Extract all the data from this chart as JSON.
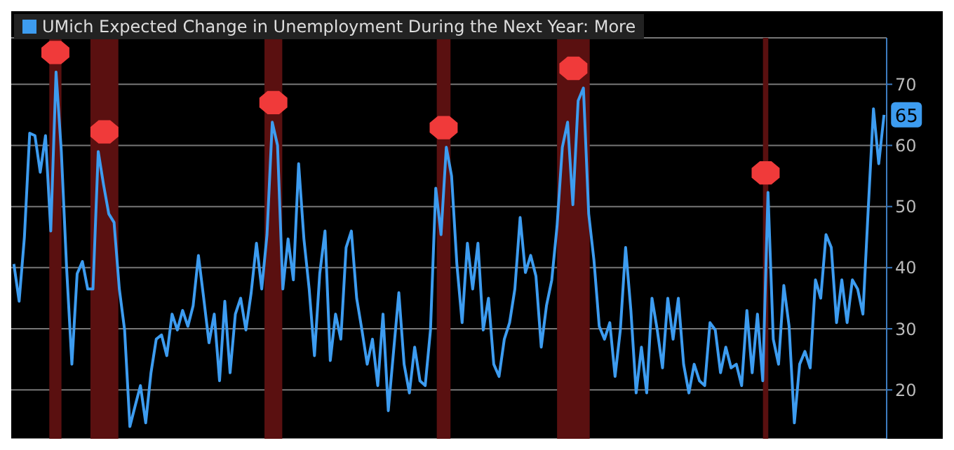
{
  "chart_data": {
    "type": "line",
    "categories": [
      null,
      null,
      null,
      null,
      null,
      null,
      null,
      null,
      null,
      null,
      null,
      null,
      null,
      null,
      null,
      null,
      null,
      null,
      null,
      null,
      null,
      null,
      null,
      null,
      null,
      null,
      null,
      null,
      null,
      null,
      null,
      null,
      null,
      null,
      null,
      null,
      null,
      null,
      null,
      null,
      null,
      null,
      null,
      null,
      null,
      null,
      null,
      null,
      null,
      null,
      null,
      null,
      null,
      null,
      null,
      null,
      null,
      null,
      null,
      null,
      null,
      null,
      null,
      null,
      null,
      null,
      null,
      null,
      null,
      null,
      null,
      null,
      null,
      null,
      null,
      null,
      null,
      null,
      null,
      null,
      null,
      null,
      null,
      null,
      null,
      null,
      null,
      null,
      null,
      null,
      null,
      null,
      null,
      null,
      null,
      null,
      null,
      null,
      null,
      null,
      null,
      null,
      null,
      null,
      null,
      null,
      null,
      null,
      null,
      null,
      null,
      null,
      null,
      null,
      null,
      null,
      null,
      null,
      null,
      null,
      null,
      null,
      null,
      null,
      null,
      null,
      null,
      null,
      null,
      null,
      null,
      null,
      null,
      null,
      null,
      null,
      null,
      null,
      null,
      null,
      null,
      null,
      null,
      null,
      null,
      null,
      null,
      null,
      null,
      null,
      null,
      null,
      null,
      null,
      null,
      null,
      null,
      null,
      null,
      null,
      null,
      null,
      null,
      null,
      null,
      null
    ],
    "series": [
      {
        "name": "UMich Expected Change in Unemployment During the Next Year: More",
        "color": "#3d9cf0",
        "values": [
          40.6,
          34.5,
          45,
          62,
          61.6,
          55.6,
          61.6,
          46,
          72,
          59,
          40,
          24.2,
          39,
          41,
          36.5,
          36.5,
          59,
          53.6,
          48.8,
          47.4,
          36.5,
          29.8,
          14,
          17.4,
          20.7,
          14.6,
          22.8,
          28.3,
          29,
          25.6,
          32.4,
          29.8,
          33,
          30.4,
          33.8,
          42,
          35,
          27.7,
          32.4,
          21.5,
          34.5,
          22.8,
          32.4,
          35,
          29.8,
          35.9,
          44,
          36.5,
          45.4,
          63.8,
          60,
          36.5,
          44.7,
          38,
          57,
          44.7,
          36.5,
          25.6,
          39,
          46,
          24.8,
          32.4,
          28.3,
          43.3,
          46,
          35,
          29.8,
          24.2,
          28.3,
          20.7,
          32.4,
          16.6,
          26.3,
          35.9,
          24.2,
          19.5,
          27,
          21.5,
          20.7,
          29.8,
          53,
          45.4,
          59.7,
          55,
          40.6,
          31,
          44,
          36.5,
          44,
          29.8,
          35,
          24.2,
          22.2,
          28.3,
          31,
          36.5,
          48.2,
          39.2,
          42,
          38.6,
          27,
          33.8,
          38,
          46.8,
          59.7,
          63.8,
          50.3,
          67.3,
          69.4,
          48.8,
          41.2,
          30.4,
          28.3,
          31,
          22.2,
          29.8,
          43.3,
          33,
          19.5,
          27,
          19.5,
          35,
          29.8,
          23.6,
          35,
          28.3,
          35,
          24.2,
          19.5,
          24.2,
          21.5,
          20.7,
          31,
          29.8,
          22.8,
          27,
          23.6,
          24.2,
          20.7,
          33,
          22.8,
          32.4,
          21.5,
          52.3,
          28.3,
          24.2,
          37.1,
          30.4,
          14.6,
          24.2,
          26.3,
          23.6,
          38,
          35,
          45.4,
          43.3,
          31,
          38,
          31,
          38,
          36.5,
          32.4,
          49.5,
          66,
          57,
          65
        ],
        "value_labels": [
          null,
          null,
          null,
          null,
          null,
          null,
          null,
          null,
          null,
          null,
          null,
          null,
          null,
          null,
          null,
          null,
          null,
          null,
          null,
          null,
          null,
          null,
          null,
          null,
          null,
          null,
          null,
          null,
          null,
          null,
          null,
          null,
          null,
          null,
          null,
          null,
          null,
          null,
          null,
          null,
          null,
          null,
          null,
          null,
          null,
          null,
          null,
          null,
          null,
          null,
          null,
          null,
          null,
          null,
          null,
          null,
          null,
          null,
          null,
          null,
          null,
          null,
          null,
          null,
          null,
          null,
          null,
          null,
          null,
          null,
          null,
          null,
          null,
          null,
          null,
          null,
          null,
          null,
          null,
          null,
          null,
          null,
          null,
          null,
          null,
          null,
          null,
          null,
          null,
          null,
          null,
          null,
          null,
          null,
          null,
          null,
          null,
          null,
          null,
          null,
          null,
          null,
          null,
          null,
          null,
          null,
          null,
          null,
          null,
          null,
          null,
          null,
          null,
          null,
          null,
          null,
          null,
          null,
          null,
          null,
          null,
          null,
          null,
          null,
          null,
          null,
          null,
          null,
          null,
          null,
          null,
          null,
          null,
          null,
          null,
          null,
          null,
          null,
          null,
          null,
          null,
          null,
          null,
          null,
          null,
          null,
          null,
          null,
          null,
          null,
          null,
          null,
          null,
          null,
          null,
          null,
          null,
          null,
          null,
          null,
          null,
          null,
          null,
          null,
          null,
          "65"
        ]
      }
    ],
    "ylim": [
      12,
      77.6
    ],
    "yticks": [
      20,
      30,
      40,
      50,
      60,
      70
    ],
    "tick_labels": "y",
    "grid": "y",
    "legend": "top left",
    "marker": "none",
    "line_style": "solid"
  }
}
